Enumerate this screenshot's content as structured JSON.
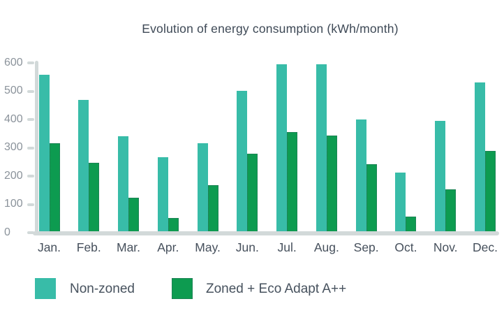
{
  "title": "Evolution of energy consumption (kWh/month)",
  "chart_data": {
    "type": "bar",
    "title": "Evolution of energy consumption (kWh/month)",
    "categories": [
      "Jan.",
      "Feb.",
      "Mar.",
      "Apr.",
      "May.",
      "Jun.",
      "Jul.",
      "Aug.",
      "Sep.",
      "Oct.",
      "Nov.",
      "Dec."
    ],
    "series": [
      {
        "name": "Non-zoned",
        "color": "#38bca8",
        "values": [
          558,
          470,
          340,
          266,
          316,
          500,
          595,
          595,
          400,
          213,
          394,
          530
        ]
      },
      {
        "name": "Zoned + Eco Adapt A++",
        "color": "#0d9b50",
        "values": [
          315,
          248,
          123,
          52,
          168,
          278,
          355,
          343,
          242,
          57,
          153,
          290
        ]
      }
    ],
    "xlabel": "",
    "ylabel": "",
    "ylim": [
      0,
      600
    ],
    "y_ticks": [
      0,
      100,
      200,
      300,
      400,
      500,
      600
    ],
    "grid": false,
    "legend_position": "bottom"
  },
  "legend": {
    "items": [
      {
        "label": "Non-zoned",
        "color": "#38bca8"
      },
      {
        "label": "Zoned + Eco Adapt A++",
        "color": "#0d9b50"
      }
    ]
  },
  "colors": {
    "axis": "#d2d9d9",
    "tick_label": "#8b939b",
    "month_label": "#46505c",
    "title_text": "#3e4956",
    "non_zoned": "#38bca8",
    "zoned": "#0d9b50"
  }
}
